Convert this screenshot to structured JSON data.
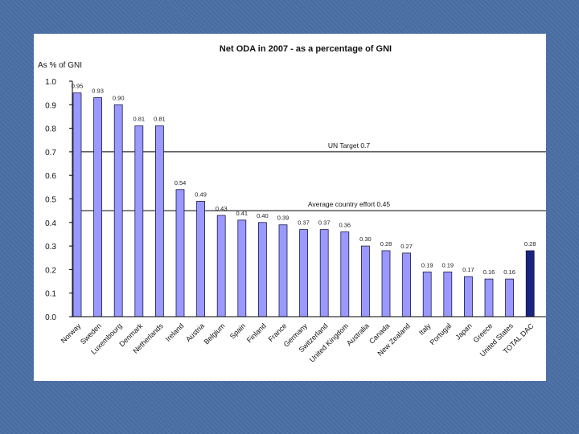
{
  "chart_data": {
    "type": "bar",
    "title": "Net ODA in 2007 - as a percentage of GNI",
    "ylabel": "As % of GNI",
    "xlabel": "",
    "ylim": [
      0,
      1.0
    ],
    "yticks": [
      "0.0",
      "0.1",
      "0.2",
      "0.3",
      "0.4",
      "0.5",
      "0.6",
      "0.7",
      "0.8",
      "0.9",
      "1.0"
    ],
    "categories": [
      "Norway",
      "Sweden",
      "Luxembourg",
      "Denmark",
      "Netherlands",
      "Ireland",
      "Austria",
      "Belgium",
      "Spain",
      "Finland",
      "France",
      "Germany",
      "Switzerland",
      "United Kingdom",
      "Australia",
      "Canada",
      "New Zealand",
      "Italy",
      "Portugal",
      "Japan",
      "Greece",
      "United States",
      "TOTAL DAC"
    ],
    "values": [
      0.95,
      0.93,
      0.9,
      0.81,
      0.81,
      0.54,
      0.49,
      0.43,
      0.41,
      0.4,
      0.39,
      0.37,
      0.37,
      0.36,
      0.3,
      0.28,
      0.27,
      0.19,
      0.19,
      0.17,
      0.16,
      0.16,
      0.28
    ],
    "value_labels": [
      "0.95",
      "0.93",
      "0.90",
      "0.81",
      "0.81",
      "0.54",
      "0.49",
      "0.43",
      "0.41",
      "0.40",
      "0.39",
      "0.37",
      "0.37",
      "0.36",
      "0.30",
      "0.28",
      "0.27",
      "0.19",
      "0.19",
      "0.17",
      "0.16",
      "0.16",
      "0.28"
    ],
    "highlight_category": "TOTAL DAC",
    "reference_lines": [
      {
        "value": 0.7,
        "label": "UN Target 0.7"
      },
      {
        "value": 0.45,
        "label": "Average country effort 0.45"
      }
    ],
    "colors": {
      "bar": "#9999ff",
      "bar_highlight": "#1a237e",
      "bar_edge": "#1a1a4a"
    }
  }
}
